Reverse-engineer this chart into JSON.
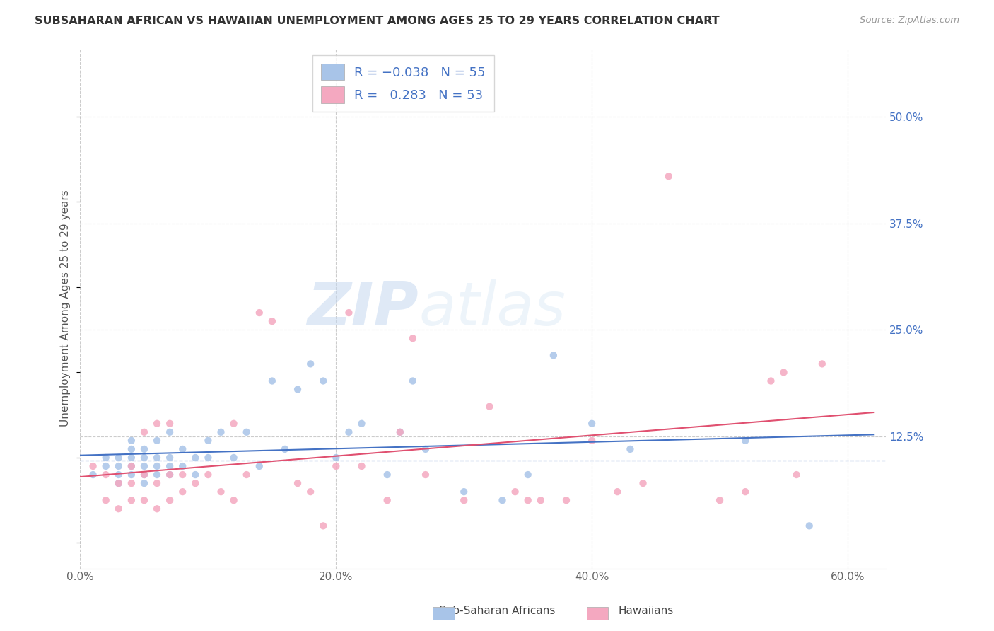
{
  "title": "SUBSAHARAN AFRICAN VS HAWAIIAN UNEMPLOYMENT AMONG AGES 25 TO 29 YEARS CORRELATION CHART",
  "source": "Source: ZipAtlas.com",
  "ylabel": "Unemployment Among Ages 25 to 29 years",
  "xlim": [
    0.0,
    0.63
  ],
  "ylim": [
    -0.03,
    0.58
  ],
  "xticks": [
    0.0,
    0.2,
    0.4,
    0.6
  ],
  "xticklabels": [
    "0.0%",
    "20.0%",
    "40.0%",
    "60.0%"
  ],
  "yticks_right": [
    0.125,
    0.25,
    0.375,
    0.5
  ],
  "ytick_labels_right": [
    "12.5%",
    "25.0%",
    "37.5%",
    "50.0%"
  ],
  "grid_color": "#cccccc",
  "background_color": "#ffffff",
  "series1_color": "#a8c4e8",
  "series2_color": "#f4a8c0",
  "line1_color": "#4472c4",
  "line2_color": "#e05070",
  "watermark_color": "#dce8f5",
  "title_color": "#333333",
  "axis_label_color": "#555555",
  "right_tick_color": "#4472c4",
  "series1_label": "Sub-Saharan Africans",
  "series2_label": "Hawaiians",
  "blue_scatter_x": [
    0.01,
    0.02,
    0.02,
    0.03,
    0.03,
    0.03,
    0.03,
    0.04,
    0.04,
    0.04,
    0.04,
    0.04,
    0.05,
    0.05,
    0.05,
    0.05,
    0.05,
    0.06,
    0.06,
    0.06,
    0.06,
    0.07,
    0.07,
    0.07,
    0.07,
    0.08,
    0.08,
    0.09,
    0.09,
    0.1,
    0.1,
    0.11,
    0.12,
    0.13,
    0.14,
    0.15,
    0.16,
    0.17,
    0.18,
    0.19,
    0.2,
    0.21,
    0.22,
    0.24,
    0.25,
    0.26,
    0.27,
    0.3,
    0.33,
    0.35,
    0.37,
    0.4,
    0.43,
    0.52,
    0.57
  ],
  "blue_scatter_y": [
    0.08,
    0.09,
    0.1,
    0.07,
    0.08,
    0.09,
    0.1,
    0.08,
    0.09,
    0.1,
    0.11,
    0.12,
    0.07,
    0.08,
    0.09,
    0.1,
    0.11,
    0.08,
    0.09,
    0.1,
    0.12,
    0.08,
    0.09,
    0.1,
    0.13,
    0.09,
    0.11,
    0.08,
    0.1,
    0.1,
    0.12,
    0.13,
    0.1,
    0.13,
    0.09,
    0.19,
    0.11,
    0.18,
    0.21,
    0.19,
    0.1,
    0.13,
    0.14,
    0.08,
    0.13,
    0.19,
    0.11,
    0.06,
    0.05,
    0.08,
    0.22,
    0.14,
    0.11,
    0.12,
    0.02
  ],
  "pink_scatter_x": [
    0.01,
    0.02,
    0.02,
    0.03,
    0.03,
    0.04,
    0.04,
    0.04,
    0.05,
    0.05,
    0.05,
    0.06,
    0.06,
    0.06,
    0.07,
    0.07,
    0.07,
    0.08,
    0.08,
    0.09,
    0.1,
    0.11,
    0.12,
    0.12,
    0.13,
    0.14,
    0.15,
    0.17,
    0.18,
    0.19,
    0.2,
    0.21,
    0.22,
    0.24,
    0.25,
    0.26,
    0.27,
    0.3,
    0.32,
    0.34,
    0.35,
    0.36,
    0.38,
    0.4,
    0.42,
    0.44,
    0.46,
    0.5,
    0.52,
    0.54,
    0.55,
    0.56,
    0.58
  ],
  "pink_scatter_y": [
    0.09,
    0.05,
    0.08,
    0.04,
    0.07,
    0.05,
    0.07,
    0.09,
    0.05,
    0.08,
    0.13,
    0.04,
    0.07,
    0.14,
    0.05,
    0.08,
    0.14,
    0.06,
    0.08,
    0.07,
    0.08,
    0.06,
    0.05,
    0.14,
    0.08,
    0.27,
    0.26,
    0.07,
    0.06,
    0.02,
    0.09,
    0.27,
    0.09,
    0.05,
    0.13,
    0.24,
    0.08,
    0.05,
    0.16,
    0.06,
    0.05,
    0.05,
    0.05,
    0.12,
    0.06,
    0.07,
    0.43,
    0.05,
    0.06,
    0.19,
    0.2,
    0.08,
    0.21
  ],
  "dashed_line_y": 0.097
}
